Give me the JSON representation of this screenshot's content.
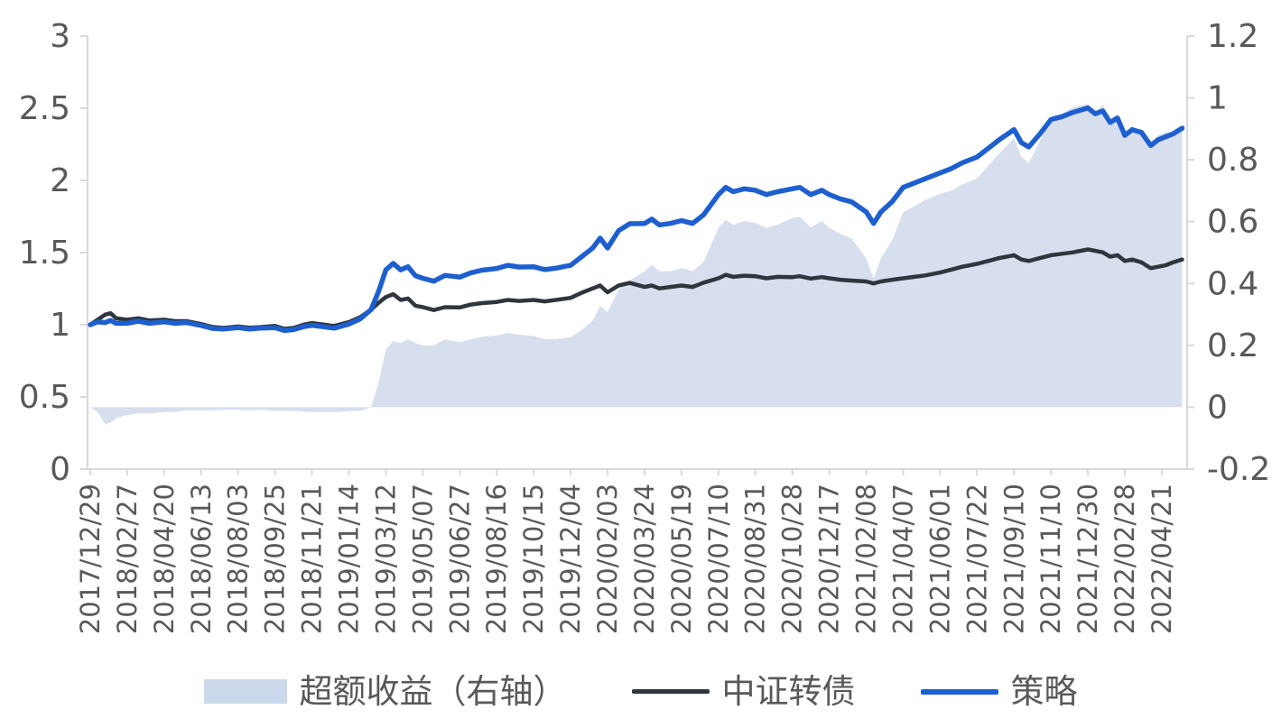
{
  "chart_data": {
    "type": "combo-line-area",
    "title": "",
    "xlabel": "",
    "ylabel_left": "",
    "ylabel_right": "",
    "grid": false,
    "legend_position": "bottom",
    "colors": {
      "axis_line": "#d9d9d9",
      "tick_mark": "#d9d9d9",
      "label_text": "#595959",
      "background": "#ffffff"
    },
    "left_axis": {
      "min": 0,
      "max": 3,
      "tick_labels": [
        "3",
        "2.5",
        "2",
        "1.5",
        "1",
        "0.5",
        "0"
      ],
      "tick_values": [
        3,
        2.5,
        2,
        1.5,
        1,
        0.5,
        0
      ]
    },
    "right_axis": {
      "min": -0.2,
      "max": 1.2,
      "tick_labels": [
        "1.2",
        "1",
        "0.8",
        "0.6",
        "0.4",
        "0.2",
        "0",
        "-0.2"
      ],
      "tick_values": [
        1.2,
        1,
        0.8,
        0.6,
        0.4,
        0.2,
        0,
        -0.2
      ]
    },
    "x_tick_labels": [
      "2017/12/29",
      "2018/02/27",
      "2018/04/20",
      "2018/06/13",
      "2018/08/03",
      "2018/09/25",
      "2018/11/21",
      "2019/01/14",
      "2019/03/12",
      "2019/05/07",
      "2019/06/27",
      "2019/08/16",
      "2019/10/15",
      "2019/12/04",
      "2020/02/03",
      "2020/03/24",
      "2020/05/19",
      "2020/07/10",
      "2020/08/31",
      "2020/10/28",
      "2020/12/17",
      "2021/02/08",
      "2021/04/07",
      "2021/06/01",
      "2021/07/22",
      "2021/09/10",
      "2021/11/10",
      "2021/12/30",
      "2022/02/28",
      "2022/04/21"
    ],
    "x": [
      0,
      0.2,
      0.4,
      0.55,
      0.7,
      1.0,
      1.3,
      1.6,
      2.0,
      2.3,
      2.6,
      3.0,
      3.3,
      3.6,
      4.0,
      4.3,
      4.6,
      5.0,
      5.25,
      5.5,
      5.8,
      6.0,
      6.3,
      6.6,
      7.0,
      7.3,
      7.6,
      7.8,
      8.0,
      8.2,
      8.4,
      8.6,
      8.8,
      9.0,
      9.3,
      9.6,
      10.0,
      10.3,
      10.6,
      11.0,
      11.3,
      11.6,
      12.0,
      12.3,
      12.6,
      13.0,
      13.3,
      13.6,
      13.8,
      14.0,
      14.3,
      14.6,
      15.0,
      15.2,
      15.4,
      15.7,
      16.0,
      16.3,
      16.6,
      17.0,
      17.2,
      17.4,
      17.7,
      18.0,
      18.3,
      18.6,
      19.0,
      19.2,
      19.5,
      19.8,
      20.0,
      20.3,
      20.6,
      21.0,
      21.2,
      21.4,
      21.7,
      22.0,
      22.3,
      22.6,
      23.0,
      23.3,
      23.6,
      24.0,
      24.3,
      24.6,
      25.0,
      25.2,
      25.4,
      25.7,
      26.0,
      26.3,
      26.6,
      27.0,
      27.2,
      27.4,
      27.6,
      27.8,
      28.0,
      28.2,
      28.45,
      28.7,
      28.9,
      29.1,
      29.3,
      29.55
    ],
    "series": [
      {
        "name": "超额收益（右轴）",
        "type": "area",
        "axis": "right",
        "color": "#d7deed",
        "legend_swatch_color": "#ccd8eb",
        "values": [
          0.0,
          -0.015,
          -0.055,
          -0.05,
          -0.035,
          -0.025,
          -0.02,
          -0.02,
          -0.015,
          -0.015,
          -0.01,
          -0.01,
          -0.01,
          -0.008,
          -0.008,
          -0.01,
          -0.008,
          -0.012,
          -0.012,
          -0.012,
          -0.014,
          -0.016,
          -0.016,
          -0.016,
          -0.013,
          -0.012,
          0.0,
          0.078,
          0.188,
          0.213,
          0.208,
          0.22,
          0.208,
          0.2,
          0.2,
          0.22,
          0.21,
          0.22,
          0.228,
          0.232,
          0.24,
          0.235,
          0.23,
          0.22,
          0.22,
          0.226,
          0.25,
          0.28,
          0.328,
          0.307,
          0.38,
          0.41,
          0.44,
          0.46,
          0.44,
          0.44,
          0.45,
          0.44,
          0.47,
          0.58,
          0.606,
          0.59,
          0.602,
          0.596,
          0.58,
          0.59,
          0.612,
          0.616,
          0.582,
          0.602,
          0.58,
          0.56,
          0.546,
          0.482,
          0.416,
          0.482,
          0.54,
          0.63,
          0.65,
          0.67,
          0.69,
          0.7,
          0.72,
          0.74,
          0.78,
          0.82,
          0.87,
          0.81,
          0.79,
          0.86,
          0.94,
          0.95,
          0.97,
          0.98,
          0.95,
          0.98,
          0.93,
          0.95,
          0.87,
          0.9,
          0.9,
          0.85,
          0.88,
          0.89,
          0.89,
          0.91
        ]
      },
      {
        "name": "中证转债",
        "type": "line",
        "axis": "left",
        "color": "#30363e",
        "legend_swatch_color": "#30363e",
        "values": [
          1.0,
          1.035,
          1.07,
          1.08,
          1.045,
          1.035,
          1.045,
          1.03,
          1.035,
          1.025,
          1.025,
          1.005,
          0.985,
          0.978,
          0.988,
          0.98,
          0.984,
          0.992,
          0.972,
          0.978,
          1.002,
          1.012,
          1.002,
          0.992,
          1.018,
          1.052,
          1.105,
          1.152,
          1.192,
          1.212,
          1.172,
          1.182,
          1.132,
          1.122,
          1.102,
          1.122,
          1.12,
          1.14,
          1.15,
          1.158,
          1.172,
          1.165,
          1.172,
          1.162,
          1.172,
          1.186,
          1.222,
          1.252,
          1.272,
          1.225,
          1.272,
          1.29,
          1.262,
          1.272,
          1.252,
          1.262,
          1.272,
          1.262,
          1.292,
          1.322,
          1.346,
          1.332,
          1.34,
          1.336,
          1.322,
          1.332,
          1.33,
          1.336,
          1.32,
          1.33,
          1.322,
          1.312,
          1.306,
          1.3,
          1.286,
          1.3,
          1.312,
          1.322,
          1.332,
          1.342,
          1.362,
          1.382,
          1.402,
          1.422,
          1.442,
          1.462,
          1.482,
          1.452,
          1.442,
          1.462,
          1.482,
          1.492,
          1.502,
          1.522,
          1.512,
          1.502,
          1.472,
          1.482,
          1.442,
          1.452,
          1.432,
          1.392,
          1.402,
          1.412,
          1.432,
          1.452
        ]
      },
      {
        "name": "策略",
        "type": "line",
        "axis": "left",
        "color": "#1e5fd0",
        "legend_swatch_color": "#1e5fd0",
        "values": [
          1.0,
          1.02,
          1.015,
          1.03,
          1.01,
          1.01,
          1.025,
          1.01,
          1.02,
          1.01,
          1.015,
          0.995,
          0.975,
          0.97,
          0.98,
          0.97,
          0.976,
          0.98,
          0.96,
          0.966,
          0.988,
          0.996,
          0.986,
          0.976,
          1.005,
          1.04,
          1.105,
          1.23,
          1.38,
          1.425,
          1.38,
          1.402,
          1.34,
          1.322,
          1.302,
          1.342,
          1.33,
          1.36,
          1.378,
          1.39,
          1.412,
          1.4,
          1.402,
          1.382,
          1.392,
          1.412,
          1.472,
          1.532,
          1.6,
          1.532,
          1.652,
          1.7,
          1.702,
          1.732,
          1.692,
          1.702,
          1.722,
          1.702,
          1.762,
          1.902,
          1.952,
          1.922,
          1.942,
          1.932,
          1.902,
          1.922,
          1.942,
          1.952,
          1.902,
          1.932,
          1.902,
          1.872,
          1.852,
          1.782,
          1.702,
          1.782,
          1.852,
          1.952,
          1.982,
          2.012,
          2.052,
          2.082,
          2.122,
          2.162,
          2.222,
          2.282,
          2.352,
          2.262,
          2.232,
          2.322,
          2.422,
          2.442,
          2.472,
          2.502,
          2.462,
          2.482,
          2.402,
          2.432,
          2.312,
          2.352,
          2.332,
          2.242,
          2.282,
          2.302,
          2.322,
          2.362
        ]
      }
    ]
  },
  "legend": {
    "items": [
      {
        "label": "超额收益（右轴）"
      },
      {
        "label": "中证转债"
      },
      {
        "label": "策略"
      }
    ]
  }
}
